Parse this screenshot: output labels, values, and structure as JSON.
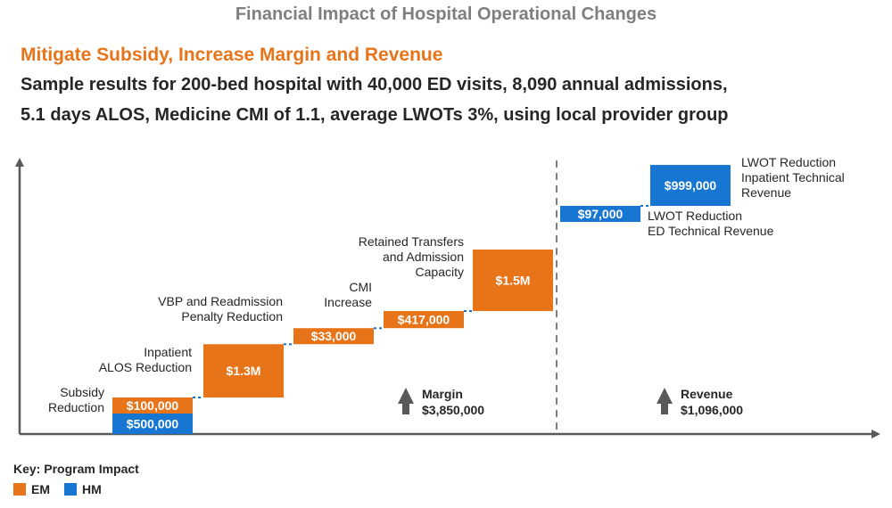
{
  "header": {
    "title": "Financial Impact of Hospital Operational Changes",
    "subtitle": "Mitigate Subsidy, Increase Margin and Revenue",
    "description_line1": "Sample results for 200-bed hospital with 40,000 ED visits, 8,090 annual admissions,",
    "description_line2": "5.1 days ALOS, Medicine CMI of 1.1, average LWOTs 3%, using local provider group"
  },
  "colors": {
    "EM": "#e8741a",
    "HM": "#1676d2"
  },
  "chart_data": {
    "type": "bar",
    "subtype": "waterfall",
    "unit": "USD",
    "grid": false,
    "steps": [
      {
        "category": "Subsidy Reduction",
        "label_lines": [
          "Subsidy",
          "Reduction"
        ],
        "segments": [
          {
            "program": "HM",
            "value": 500000,
            "value_label": "$500,000"
          },
          {
            "program": "EM",
            "value": 100000,
            "value_label": "$100,000"
          }
        ]
      },
      {
        "category": "Inpatient ALOS Reduction",
        "label_lines": [
          "Inpatient",
          "ALOS Reduction"
        ],
        "segments": [
          {
            "program": "EM",
            "value": 1300000,
            "value_label": "$1.3M"
          }
        ]
      },
      {
        "category": "VBP and Readmission Penalty Reduction",
        "label_lines": [
          "VBP and Readmission",
          "Penalty Reduction"
        ],
        "segments": [
          {
            "program": "EM",
            "value": 33000,
            "value_label": "$33,000"
          }
        ]
      },
      {
        "category": "CMI Increase",
        "label_lines": [
          "CMI",
          "Increase"
        ],
        "segments": [
          {
            "program": "EM",
            "value": 417000,
            "value_label": "$417,000"
          }
        ]
      },
      {
        "category": "Retained Transfers and Admission Capacity",
        "label_lines": [
          "Retained Transfers",
          "and Admission",
          "Capacity"
        ],
        "segments": [
          {
            "program": "EM",
            "value": 1500000,
            "value_label": "$1.5M"
          }
        ]
      },
      {
        "category": "LWOT Reduction ED Technical Revenue",
        "label_lines": [
          "LWOT Reduction",
          "ED Technical Revenue"
        ],
        "segments": [
          {
            "program": "HM",
            "value": 97000,
            "value_label": "$97,000"
          }
        ]
      },
      {
        "category": "LWOT Reduction Inpatient Technical Revenue",
        "label_lines": [
          "LWOT Reduction",
          "Inpatient Technical",
          "Revenue"
        ],
        "segments": [
          {
            "program": "HM",
            "value": 999000,
            "value_label": "$999,000"
          }
        ]
      }
    ],
    "totals": [
      {
        "label": "Margin",
        "value": 3850000,
        "value_label": "$3,850,000"
      },
      {
        "label": "Revenue",
        "value": 1096000,
        "value_label": "$1,096,000"
      }
    ],
    "legend": {
      "title": "Key: Program Impact",
      "position": "bottom-left",
      "entries": [
        {
          "program": "EM",
          "label": "EM"
        },
        {
          "program": "HM",
          "label": "HM"
        }
      ]
    }
  }
}
